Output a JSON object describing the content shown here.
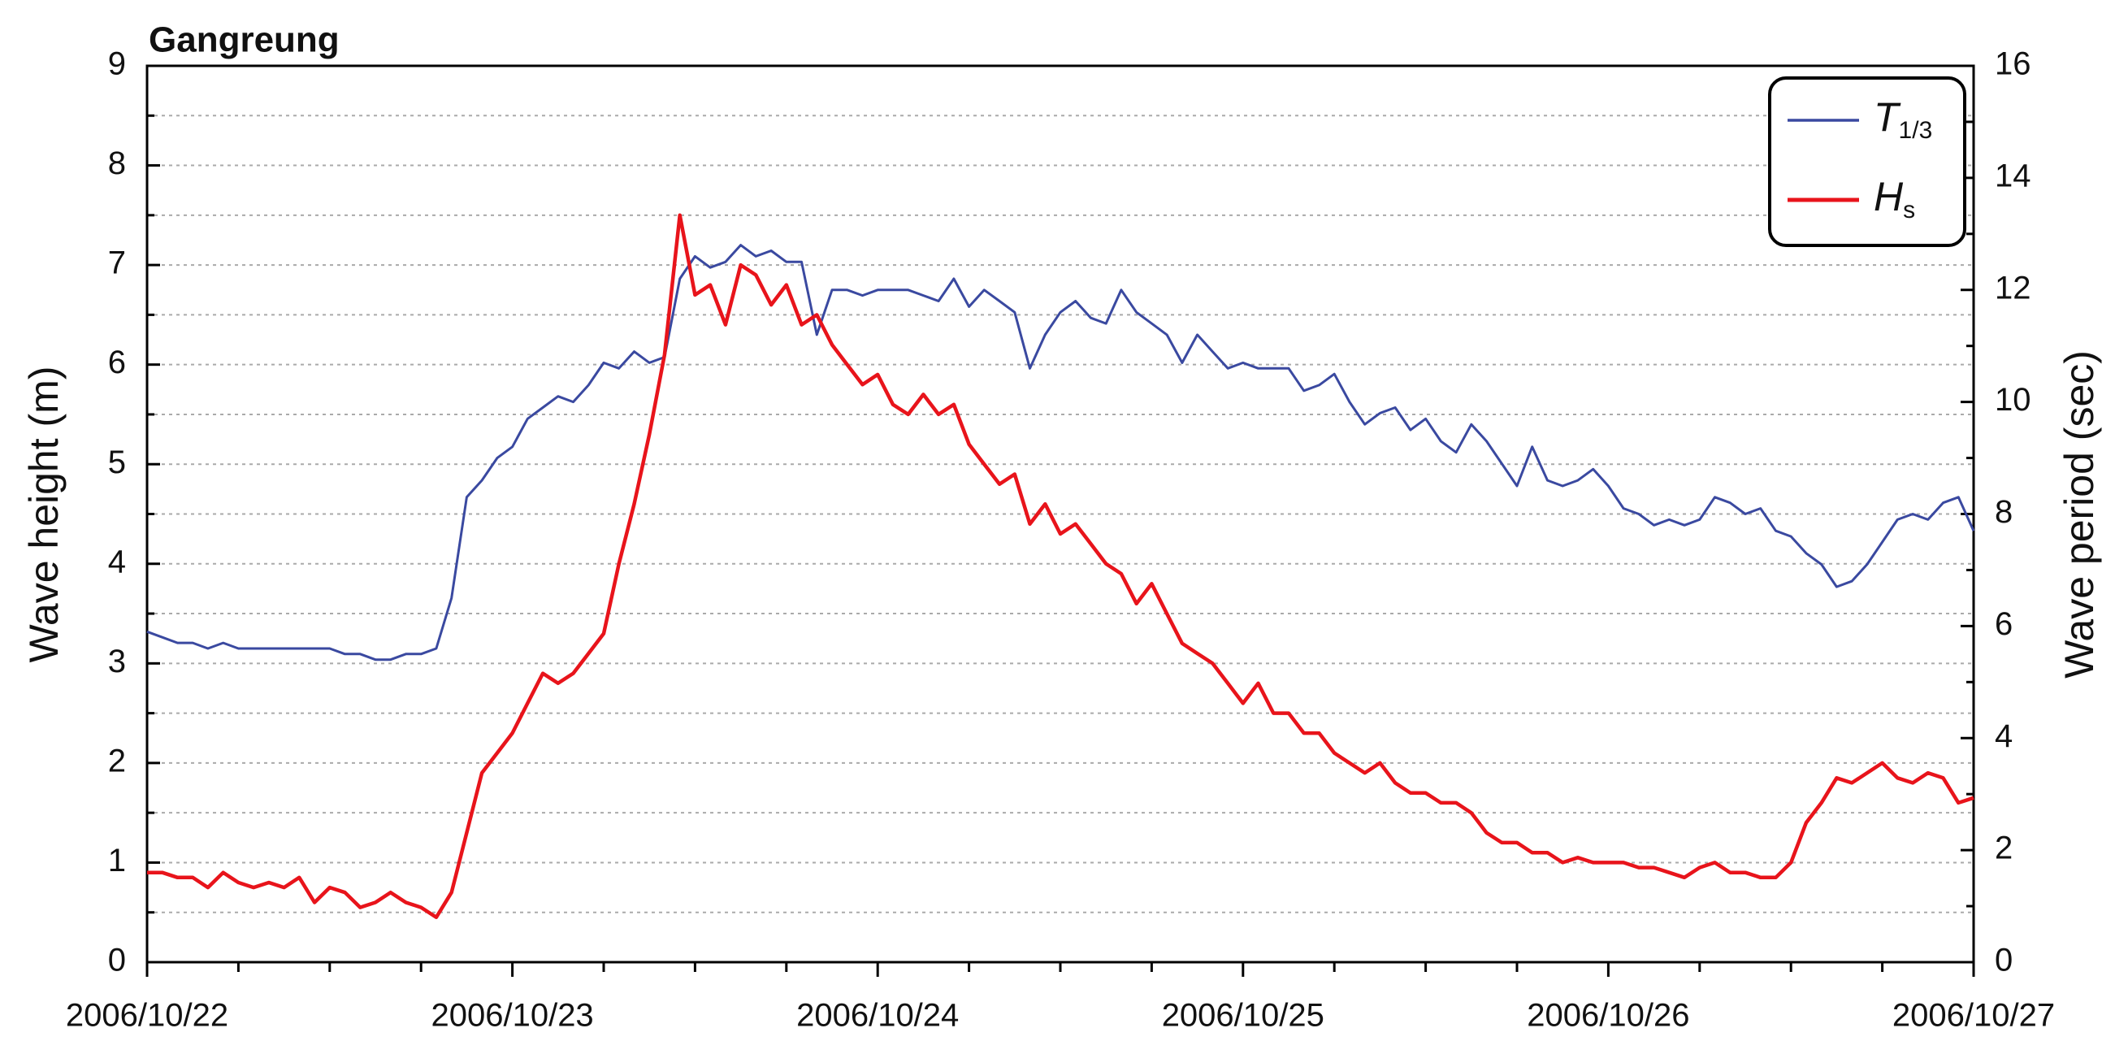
{
  "chart_data": {
    "type": "line",
    "title": "Gangreung",
    "ylabel": "Wave height (m)",
    "y2label": "Wave period (sec)",
    "xlim": [
      0,
      120
    ],
    "xticks": [
      {
        "value": 0,
        "label": "2006/10/22"
      },
      {
        "value": 24,
        "label": "2006/10/23"
      },
      {
        "value": 48,
        "label": "2006/10/24"
      },
      {
        "value": 72,
        "label": "2006/10/25"
      },
      {
        "value": 96,
        "label": "2006/10/26"
      },
      {
        "value": 120,
        "label": "2006/10/27"
      }
    ],
    "ylim": [
      0,
      9
    ],
    "yticks": [
      0,
      1,
      2,
      3,
      4,
      5,
      6,
      7,
      8,
      9
    ],
    "y2lim": [
      0,
      16
    ],
    "y2ticks": [
      0,
      2,
      4,
      6,
      8,
      10,
      12,
      14,
      16
    ],
    "grid": true,
    "legend": "upper right",
    "x": [
      0,
      1,
      2,
      3,
      4,
      5,
      6,
      7,
      8,
      9,
      10,
      11,
      12,
      13,
      14,
      15,
      16,
      17,
      18,
      19,
      20,
      21,
      22,
      23,
      24,
      25,
      26,
      27,
      28,
      29,
      30,
      31,
      32,
      33,
      34,
      35,
      36,
      37,
      38,
      39,
      40,
      41,
      42,
      43,
      44,
      45,
      46,
      47,
      48,
      49,
      50,
      51,
      52,
      53,
      54,
      55,
      56,
      57,
      58,
      59,
      60,
      61,
      62,
      63,
      64,
      65,
      66,
      67,
      68,
      69,
      70,
      71,
      72,
      73,
      74,
      75,
      76,
      77,
      78,
      79,
      80,
      81,
      82,
      83,
      84,
      85,
      86,
      87,
      88,
      89,
      90,
      91,
      92,
      93,
      94,
      95,
      96,
      97,
      98,
      99,
      100,
      101,
      102,
      103,
      104,
      105,
      106,
      107,
      108,
      109,
      110,
      111,
      112,
      113,
      114,
      115,
      116,
      117,
      118,
      119,
      120
    ],
    "series": [
      {
        "name": "T1/3",
        "color": "#3a49a0",
        "axis": "y2",
        "values": [
          5.9,
          5.8,
          5.7,
          5.7,
          5.6,
          5.7,
          5.6,
          5.6,
          5.6,
          5.6,
          5.6,
          5.6,
          5.6,
          5.5,
          5.5,
          5.4,
          5.4,
          5.5,
          5.5,
          5.6,
          6.5,
          8.3,
          8.6,
          9.0,
          9.2,
          9.7,
          9.9,
          10.1,
          10.0,
          10.3,
          10.7,
          10.6,
          10.9,
          10.7,
          10.8,
          12.2,
          12.6,
          12.4,
          12.5,
          12.8,
          12.6,
          12.7,
          12.5,
          12.5,
          11.2,
          12.0,
          12.0,
          11.9,
          12.0,
          12.0,
          12.0,
          11.9,
          11.8,
          12.2,
          11.7,
          12.0,
          11.8,
          11.6,
          10.6,
          11.2,
          11.6,
          11.8,
          11.5,
          11.4,
          12.0,
          11.6,
          11.4,
          11.2,
          10.7,
          11.2,
          10.9,
          10.6,
          10.7,
          10.6,
          10.6,
          10.6,
          10.2,
          10.3,
          10.5,
          10.0,
          9.6,
          9.8,
          9.9,
          9.5,
          9.7,
          9.3,
          9.1,
          9.6,
          9.3,
          8.9,
          8.5,
          9.2,
          8.6,
          8.5,
          8.6,
          8.8,
          8.5,
          8.1,
          8.0,
          7.8,
          7.9,
          7.8,
          7.9,
          8.3,
          8.2,
          8.0,
          8.1,
          7.7,
          7.6,
          7.3,
          7.1,
          6.7,
          6.8,
          7.1,
          7.5,
          7.9,
          8.0,
          7.9,
          8.2,
          8.3,
          7.7
        ]
      },
      {
        "name": "Hs",
        "color": "#e8141b",
        "axis": "y",
        "values": [
          0.9,
          0.9,
          0.85,
          0.85,
          0.75,
          0.9,
          0.8,
          0.75,
          0.8,
          0.75,
          0.85,
          0.6,
          0.75,
          0.7,
          0.55,
          0.6,
          0.7,
          0.6,
          0.55,
          0.45,
          0.7,
          1.3,
          1.9,
          2.1,
          2.3,
          2.6,
          2.9,
          2.8,
          2.9,
          3.1,
          3.3,
          4.0,
          4.6,
          5.3,
          6.1,
          7.5,
          6.7,
          6.8,
          6.4,
          7.0,
          6.9,
          6.6,
          6.8,
          6.4,
          6.5,
          6.2,
          6.0,
          5.8,
          5.9,
          5.6,
          5.5,
          5.7,
          5.5,
          5.6,
          5.2,
          5.0,
          4.8,
          4.9,
          4.4,
          4.6,
          4.3,
          4.4,
          4.2,
          4.0,
          3.9,
          3.6,
          3.8,
          3.5,
          3.2,
          3.1,
          3.0,
          2.8,
          2.6,
          2.8,
          2.5,
          2.5,
          2.3,
          2.3,
          2.1,
          2.0,
          1.9,
          2.0,
          1.8,
          1.7,
          1.7,
          1.6,
          1.6,
          1.5,
          1.3,
          1.2,
          1.2,
          1.1,
          1.1,
          1.0,
          1.05,
          1.0,
          1.0,
          1.0,
          0.95,
          0.95,
          0.9,
          0.85,
          0.95,
          1.0,
          0.9,
          0.9,
          0.85,
          0.85,
          1.0,
          1.4,
          1.6,
          1.85,
          1.8,
          1.9,
          2.0,
          1.85,
          1.8,
          1.9,
          1.85,
          1.6,
          1.65
        ]
      }
    ]
  }
}
